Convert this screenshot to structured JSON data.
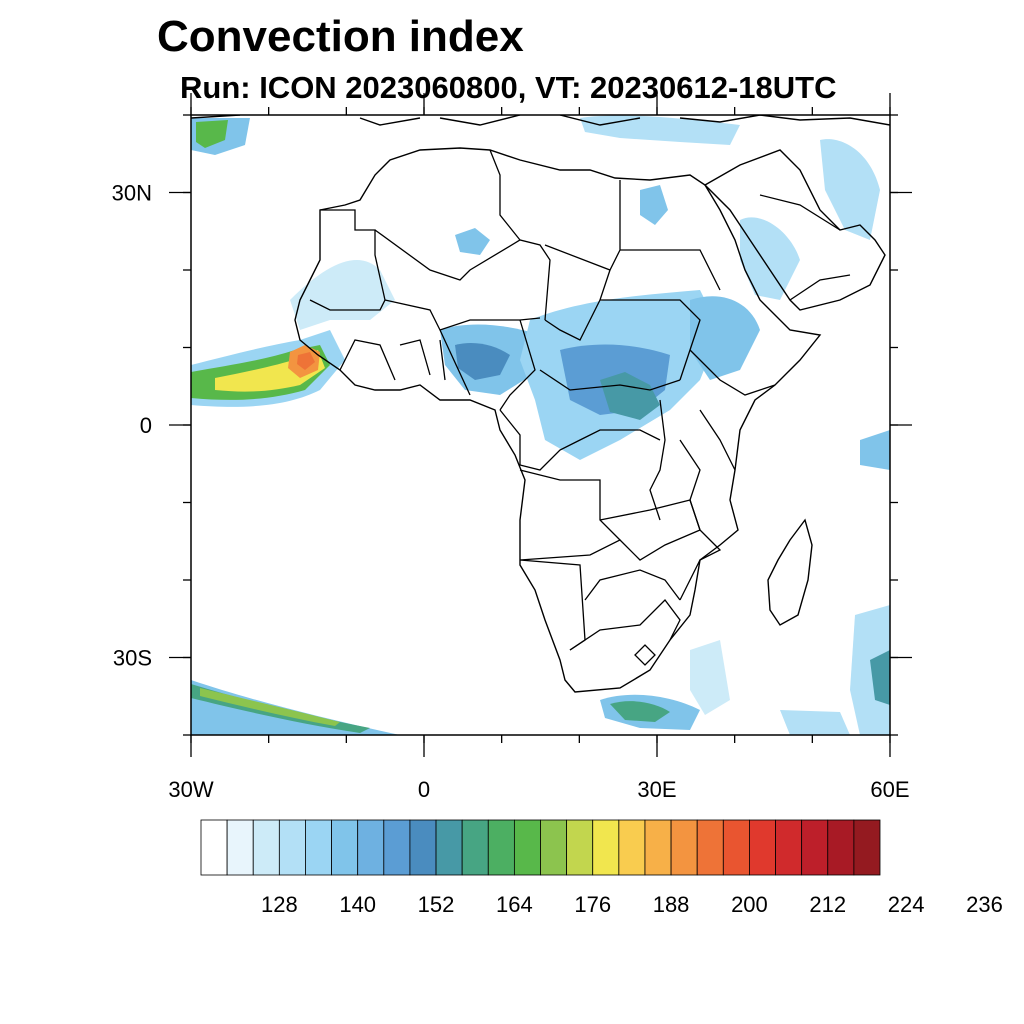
{
  "title": "Convection index",
  "subtitle": "Run: ICON 2023060800,  VT: 20230612-18UTC",
  "map": {
    "lon_range": [
      -30,
      60
    ],
    "lat_range": [
      -40,
      40
    ],
    "lat_ticks": [
      {
        "value": 30,
        "label": "30N"
      },
      {
        "value": 0,
        "label": "0"
      },
      {
        "value": -30,
        "label": "30S"
      }
    ],
    "lon_ticks": [
      {
        "value": -30,
        "label": "30W"
      },
      {
        "value": 0,
        "label": "0"
      },
      {
        "value": 30,
        "label": "30E"
      },
      {
        "value": 60,
        "label": "60E"
      }
    ]
  },
  "colorbar": {
    "colors": [
      "#ffffff",
      "#e8f5fc",
      "#cdebf8",
      "#b3e0f6",
      "#9bd5f3",
      "#80c4ea",
      "#6eb1e1",
      "#5b9dd4",
      "#4a8cbf",
      "#4799a6",
      "#47a583",
      "#4caf62",
      "#58b84a",
      "#8cc44e",
      "#c2d64e",
      "#f1e64e",
      "#f9cc4f",
      "#f7b048",
      "#f39440",
      "#ee7337",
      "#e95530",
      "#e0392d",
      "#d02a2c",
      "#bd1f2a",
      "#a81a25",
      "#941a20"
    ],
    "labels": [
      "128",
      "140",
      "152",
      "164",
      "176",
      "188",
      "200",
      "212",
      "224",
      "236"
    ]
  }
}
